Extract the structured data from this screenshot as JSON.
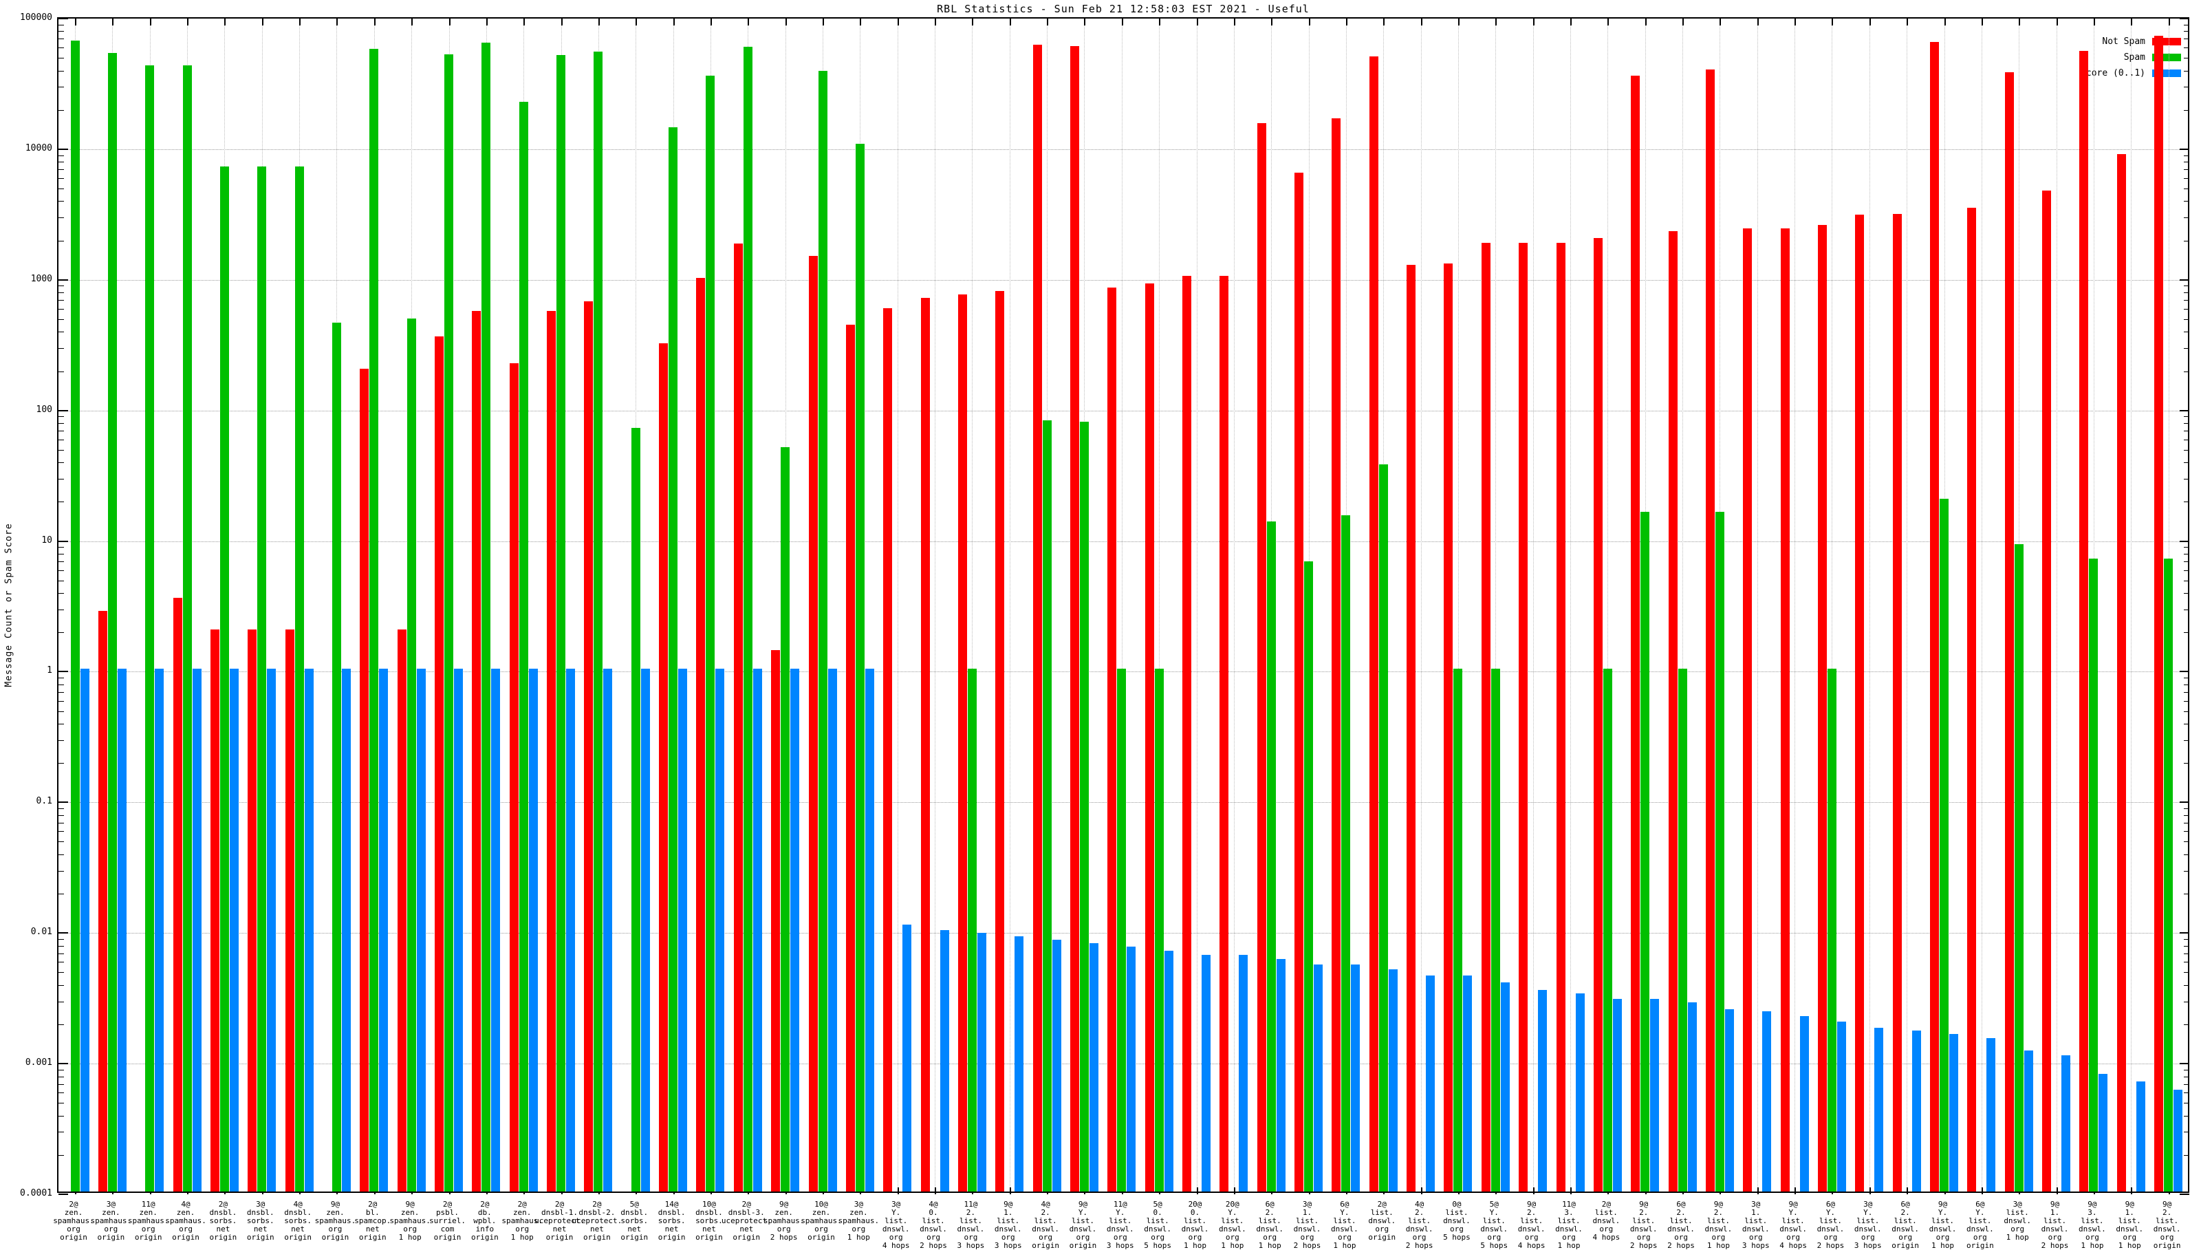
{
  "title": "RBL Statistics - Sun Feb 21 12:58:03 EST 2021 - Useful",
  "ylabel": "Message Count or Spam Score",
  "legend": {
    "not_spam_label": "Not Spam",
    "spam_label": "Spam",
    "score_label": "Score (0..1)"
  },
  "colors": {
    "not_spam": "#ff0000",
    "spam": "#00bf00",
    "score": "#0085ff",
    "grid": "#9a9a9a",
    "axis": "#000000",
    "background": "#ffffff"
  },
  "chart_data": {
    "type": "bar",
    "y_log_scale": true,
    "ylim": [
      0.0001,
      100000
    ],
    "ytick_labels": [
      "100000",
      "10000",
      "1000",
      "100",
      "10",
      "1",
      "0.1",
      "0.01",
      "0.001",
      "0.0001"
    ],
    "grid": true,
    "legend_position": "top-right",
    "series_names": [
      "Not Spam",
      "Spam",
      "Score (0..1)"
    ],
    "groups": [
      {
        "label": [
          "2@",
          "zen.",
          "spamhaus.",
          "org",
          "origin"
        ],
        "not_spam": 0,
        "spam": 65000,
        "score": 1.0
      },
      {
        "label": [
          "3@",
          "zen.",
          "spamhaus.",
          "org",
          "origin"
        ],
        "not_spam": 2.8,
        "spam": 52000,
        "score": 1.0
      },
      {
        "label": [
          "11@",
          "zen.",
          "spamhaus.",
          "org",
          "origin"
        ],
        "not_spam": 0,
        "spam": 42000,
        "score": 1.0
      },
      {
        "label": [
          "4@",
          "zen.",
          "spamhaus.",
          "org",
          "origin"
        ],
        "not_spam": 3.5,
        "spam": 42000,
        "score": 1.0
      },
      {
        "label": [
          "2@",
          "dnsbl.",
          "sorbs.",
          "net",
          "origin"
        ],
        "not_spam": 2,
        "spam": 7000,
        "score": 1.0
      },
      {
        "label": [
          "3@",
          "dnsbl.",
          "sorbs.",
          "net",
          "origin"
        ],
        "not_spam": 2,
        "spam": 7000,
        "score": 1.0
      },
      {
        "label": [
          "4@",
          "dnsbl.",
          "sorbs.",
          "net",
          "origin"
        ],
        "not_spam": 2,
        "spam": 7000,
        "score": 1.0
      },
      {
        "label": [
          "9@",
          "zen.",
          "spamhaus.",
          "org",
          "origin"
        ],
        "not_spam": 0,
        "spam": 450,
        "score": 1.0
      },
      {
        "label": [
          "2@",
          "bl.",
          "spamcop.",
          "net",
          "origin"
        ],
        "not_spam": 200,
        "spam": 56000,
        "score": 1.0
      },
      {
        "label": [
          "9@",
          "zen.",
          "spamhaus.",
          "org",
          "1 hop"
        ],
        "not_spam": 2,
        "spam": 480,
        "score": 1.0
      },
      {
        "label": [
          "2@",
          "psbl.",
          "surriel.",
          "com",
          "origin"
        ],
        "not_spam": 350,
        "spam": 51000,
        "score": 1.0
      },
      {
        "label": [
          "2@",
          "db.",
          "wpbl.",
          "info",
          "origin"
        ],
        "not_spam": 550,
        "spam": 62000,
        "score": 1.0
      },
      {
        "label": [
          "2@",
          "zen.",
          "spamhaus.",
          "org",
          "1 hop"
        ],
        "not_spam": 220,
        "spam": 22000,
        "score": 1.0
      },
      {
        "label": [
          "2@",
          "dnsbl-1.",
          "uceprotect.",
          "net",
          "origin"
        ],
        "not_spam": 550,
        "spam": 50000,
        "score": 1.0
      },
      {
        "label": [
          "2@",
          "dnsbl-2.",
          "uceprotect.",
          "net",
          "origin"
        ],
        "not_spam": 650,
        "spam": 53000,
        "score": 1.0
      },
      {
        "label": [
          "5@",
          "dnsbl.",
          "sorbs.",
          "net",
          "origin"
        ],
        "not_spam": 0,
        "spam": 70,
        "score": 1.0
      },
      {
        "label": [
          "14@",
          "dnsbl.",
          "sorbs.",
          "net",
          "origin"
        ],
        "not_spam": 310,
        "spam": 14000,
        "score": 1.0
      },
      {
        "label": [
          "10@",
          "dnsbl.",
          "sorbs.",
          "net",
          "origin"
        ],
        "not_spam": 980,
        "spam": 35000,
        "score": 1.0
      },
      {
        "label": [
          "2@",
          "dnsbl-3.",
          "uceprotect.",
          "net",
          "origin"
        ],
        "not_spam": 1800,
        "spam": 58000,
        "score": 1.0
      },
      {
        "label": [
          "9@",
          "zen.",
          "spamhaus.",
          "org",
          "2 hops"
        ],
        "not_spam": 1.4,
        "spam": 50,
        "score": 1.0
      },
      {
        "label": [
          "10@",
          "zen.",
          "spamhaus.",
          "org",
          "origin"
        ],
        "not_spam": 1450,
        "spam": 38000,
        "score": 1.0
      },
      {
        "label": [
          "3@",
          "zen.",
          "spamhaus.",
          "org",
          "1 hop"
        ],
        "not_spam": 430,
        "spam": 10500,
        "score": 1.0
      },
      {
        "label": [
          "3@",
          "Y.",
          "list.",
          "dnswl.",
          "org",
          "4 hops"
        ],
        "not_spam": 580,
        "spam": 0,
        "score": 0.011
      },
      {
        "label": [
          "4@",
          "0.",
          "list.",
          "dnswl.",
          "org",
          "2 hops"
        ],
        "not_spam": 690,
        "spam": 0,
        "score": 0.01
      },
      {
        "label": [
          "11@",
          "2.",
          "list.",
          "dnswl.",
          "org",
          "3 hops"
        ],
        "not_spam": 740,
        "spam": 1,
        "score": 0.0095
      },
      {
        "label": [
          "9@",
          "1.",
          "list.",
          "dnswl.",
          "org",
          "3 hops"
        ],
        "not_spam": 780,
        "spam": 0,
        "score": 0.009
      },
      {
        "label": [
          "4@",
          "2.",
          "list.",
          "dnswl.",
          "org",
          "origin"
        ],
        "not_spam": 60000,
        "spam": 80,
        "score": 0.0085
      },
      {
        "label": [
          "9@",
          "Y.",
          "list.",
          "dnswl.",
          "org",
          "origin"
        ],
        "not_spam": 59000,
        "spam": 78,
        "score": 0.008
      },
      {
        "label": [
          "11@",
          "Y.",
          "list.",
          "dnswl.",
          "org",
          "3 hops"
        ],
        "not_spam": 830,
        "spam": 1,
        "score": 0.0075
      },
      {
        "label": [
          "5@",
          "0.",
          "list.",
          "dnswl.",
          "org",
          "5 hops"
        ],
        "not_spam": 890,
        "spam": 1,
        "score": 0.007
      },
      {
        "label": [
          "20@",
          "0.",
          "list.",
          "dnswl.",
          "org",
          "1 hop"
        ],
        "not_spam": 1020,
        "spam": 0,
        "score": 0.0065
      },
      {
        "label": [
          "20@",
          "Y.",
          "list.",
          "dnswl.",
          "org",
          "1 hop"
        ],
        "not_spam": 1020,
        "spam": 0,
        "score": 0.0065
      },
      {
        "label": [
          "6@",
          "2.",
          "list.",
          "dnswl.",
          "org",
          "1 hop"
        ],
        "not_spam": 15000,
        "spam": 13.5,
        "score": 0.006
      },
      {
        "label": [
          "3@",
          "1.",
          "list.",
          "dnswl.",
          "org",
          "2 hops"
        ],
        "not_spam": 6300,
        "spam": 6.7,
        "score": 0.0055
      },
      {
        "label": [
          "6@",
          "Y.",
          "list.",
          "dnswl.",
          "org",
          "1 hop"
        ],
        "not_spam": 16500,
        "spam": 15,
        "score": 0.0055
      },
      {
        "label": [
          "2@",
          "list.",
          "dnswl.",
          "org",
          "origin"
        ],
        "not_spam": 49000,
        "spam": 37,
        "score": 0.005
      },
      {
        "label": [
          "4@",
          "2.",
          "list.",
          "dnswl.",
          "org",
          "2 hops"
        ],
        "not_spam": 1240,
        "spam": 0,
        "score": 0.0045
      },
      {
        "label": [
          "0@",
          "list.",
          "dnswl.",
          "org",
          "5 hops"
        ],
        "not_spam": 1270,
        "spam": 1,
        "score": 0.0045
      },
      {
        "label": [
          "5@",
          "Y.",
          "list.",
          "dnswl.",
          "org",
          "5 hops"
        ],
        "not_spam": 1820,
        "spam": 1,
        "score": 0.004
      },
      {
        "label": [
          "9@",
          "2.",
          "list.",
          "dnswl.",
          "org",
          "4 hops"
        ],
        "not_spam": 1830,
        "spam": 0,
        "score": 0.0035
      },
      {
        "label": [
          "11@",
          "3.",
          "list.",
          "dnswl.",
          "org",
          "1 hop"
        ],
        "not_spam": 1830,
        "spam": 0,
        "score": 0.0033
      },
      {
        "label": [
          "2@",
          "list.",
          "dnswl.",
          "org",
          "4 hops"
        ],
        "not_spam": 2000,
        "spam": 1,
        "score": 0.003
      },
      {
        "label": [
          "9@",
          "2.",
          "list.",
          "dnswl.",
          "org",
          "2 hops"
        ],
        "not_spam": 35000,
        "spam": 16,
        "score": 0.003
      },
      {
        "label": [
          "6@",
          "2.",
          "list.",
          "dnswl.",
          "org",
          "2 hops"
        ],
        "not_spam": 2250,
        "spam": 1,
        "score": 0.0028
      },
      {
        "label": [
          "9@",
          "2.",
          "list.",
          "dnswl.",
          "org",
          "1 hop"
        ],
        "not_spam": 39000,
        "spam": 16,
        "score": 0.0025
      },
      {
        "label": [
          "3@",
          "1.",
          "list.",
          "dnswl.",
          "org",
          "3 hops"
        ],
        "not_spam": 2350,
        "spam": 0,
        "score": 0.0024
      },
      {
        "label": [
          "9@",
          "Y.",
          "list.",
          "dnswl.",
          "org",
          "4 hops"
        ],
        "not_spam": 2350,
        "spam": 0,
        "score": 0.0022
      },
      {
        "label": [
          "6@",
          "Y.",
          "list.",
          "dnswl.",
          "org",
          "2 hops"
        ],
        "not_spam": 2500,
        "spam": 1,
        "score": 0.002
      },
      {
        "label": [
          "3@",
          "Y.",
          "list.",
          "dnswl.",
          "org",
          "3 hops"
        ],
        "not_spam": 3000,
        "spam": 0,
        "score": 0.0018
      },
      {
        "label": [
          "6@",
          "2.",
          "list.",
          "dnswl.",
          "org",
          "origin"
        ],
        "not_spam": 3050,
        "spam": 0,
        "score": 0.0017
      },
      {
        "label": [
          "9@",
          "Y.",
          "list.",
          "dnswl.",
          "org",
          "1 hop"
        ],
        "not_spam": 63000,
        "spam": 20,
        "score": 0.0016
      },
      {
        "label": [
          "6@",
          "Y.",
          "list.",
          "dnswl.",
          "org",
          "origin"
        ],
        "not_spam": 3400,
        "spam": 0,
        "score": 0.0015
      },
      {
        "label": [
          "3@",
          "list.",
          "dnswl.",
          "org",
          "1 hop"
        ],
        "not_spam": 37000,
        "spam": 9,
        "score": 0.0012
      },
      {
        "label": [
          "9@",
          "1.",
          "list.",
          "dnswl.",
          "org",
          "2 hops"
        ],
        "not_spam": 4600,
        "spam": 0,
        "score": 0.0011
      },
      {
        "label": [
          "9@",
          "3.",
          "list.",
          "dnswl.",
          "org",
          "1 hop"
        ],
        "not_spam": 54000,
        "spam": 7,
        "score": 0.0008
      },
      {
        "label": [
          "9@",
          "1.",
          "list.",
          "dnswl.",
          "org",
          "1 hop"
        ],
        "not_spam": 8700,
        "spam": 0,
        "score": 0.0007
      },
      {
        "label": [
          "9@",
          "2.",
          "list.",
          "dnswl.",
          "org",
          "origin"
        ],
        "not_spam": 70000,
        "spam": 7,
        "score": 0.0006
      }
    ]
  }
}
